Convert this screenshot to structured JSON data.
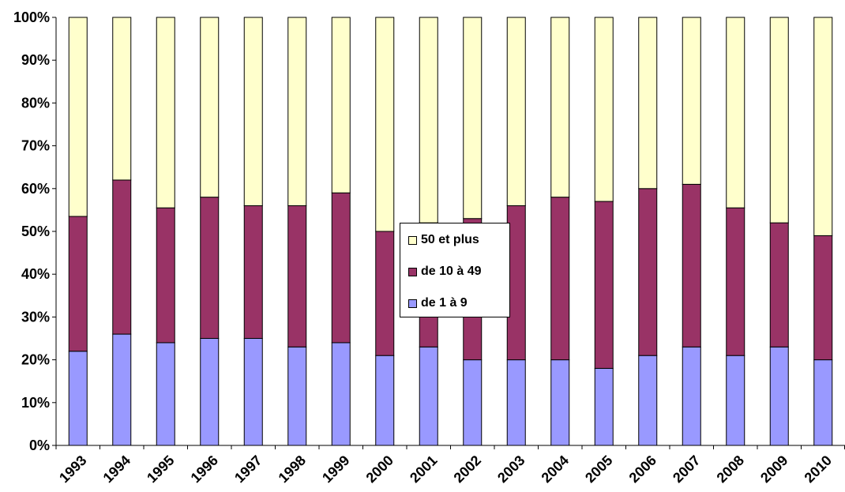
{
  "chart_data": {
    "type": "bar",
    "stacked": true,
    "percent": true,
    "title": "",
    "xlabel": "",
    "ylabel": "",
    "ylim": [
      0,
      100
    ],
    "yticks": [
      "0%",
      "10%",
      "20%",
      "30%",
      "40%",
      "50%",
      "60%",
      "70%",
      "80%",
      "90%",
      "100%"
    ],
    "grid": false,
    "legend_position": "center",
    "categories": [
      "1993",
      "1994",
      "1995",
      "1996",
      "1997",
      "1998",
      "1999",
      "2000",
      "2001",
      "2002",
      "2003",
      "2004",
      "2005",
      "2006",
      "2007",
      "2008",
      "2009",
      "2010"
    ],
    "series": [
      {
        "name": "de 1 à 9",
        "color": "#9999ff",
        "values": [
          22,
          26,
          24,
          25,
          25,
          23,
          24,
          21,
          23,
          20,
          20,
          20,
          18,
          21,
          23,
          21,
          23,
          20
        ]
      },
      {
        "name": "de 10 à 49",
        "color": "#993366",
        "values": [
          31.5,
          36,
          31.5,
          33,
          31,
          33,
          35,
          29,
          29,
          33,
          36,
          38,
          39,
          39,
          38,
          34.5,
          29,
          29
        ]
      },
      {
        "name": "50 et plus",
        "color": "#ffffcc",
        "values": [
          46.5,
          38,
          44.5,
          42,
          44,
          44,
          41,
          50,
          48,
          47,
          44,
          42,
          43,
          40,
          39,
          44.5,
          48,
          51
        ]
      }
    ],
    "legend_order": [
      2,
      1,
      0
    ]
  }
}
